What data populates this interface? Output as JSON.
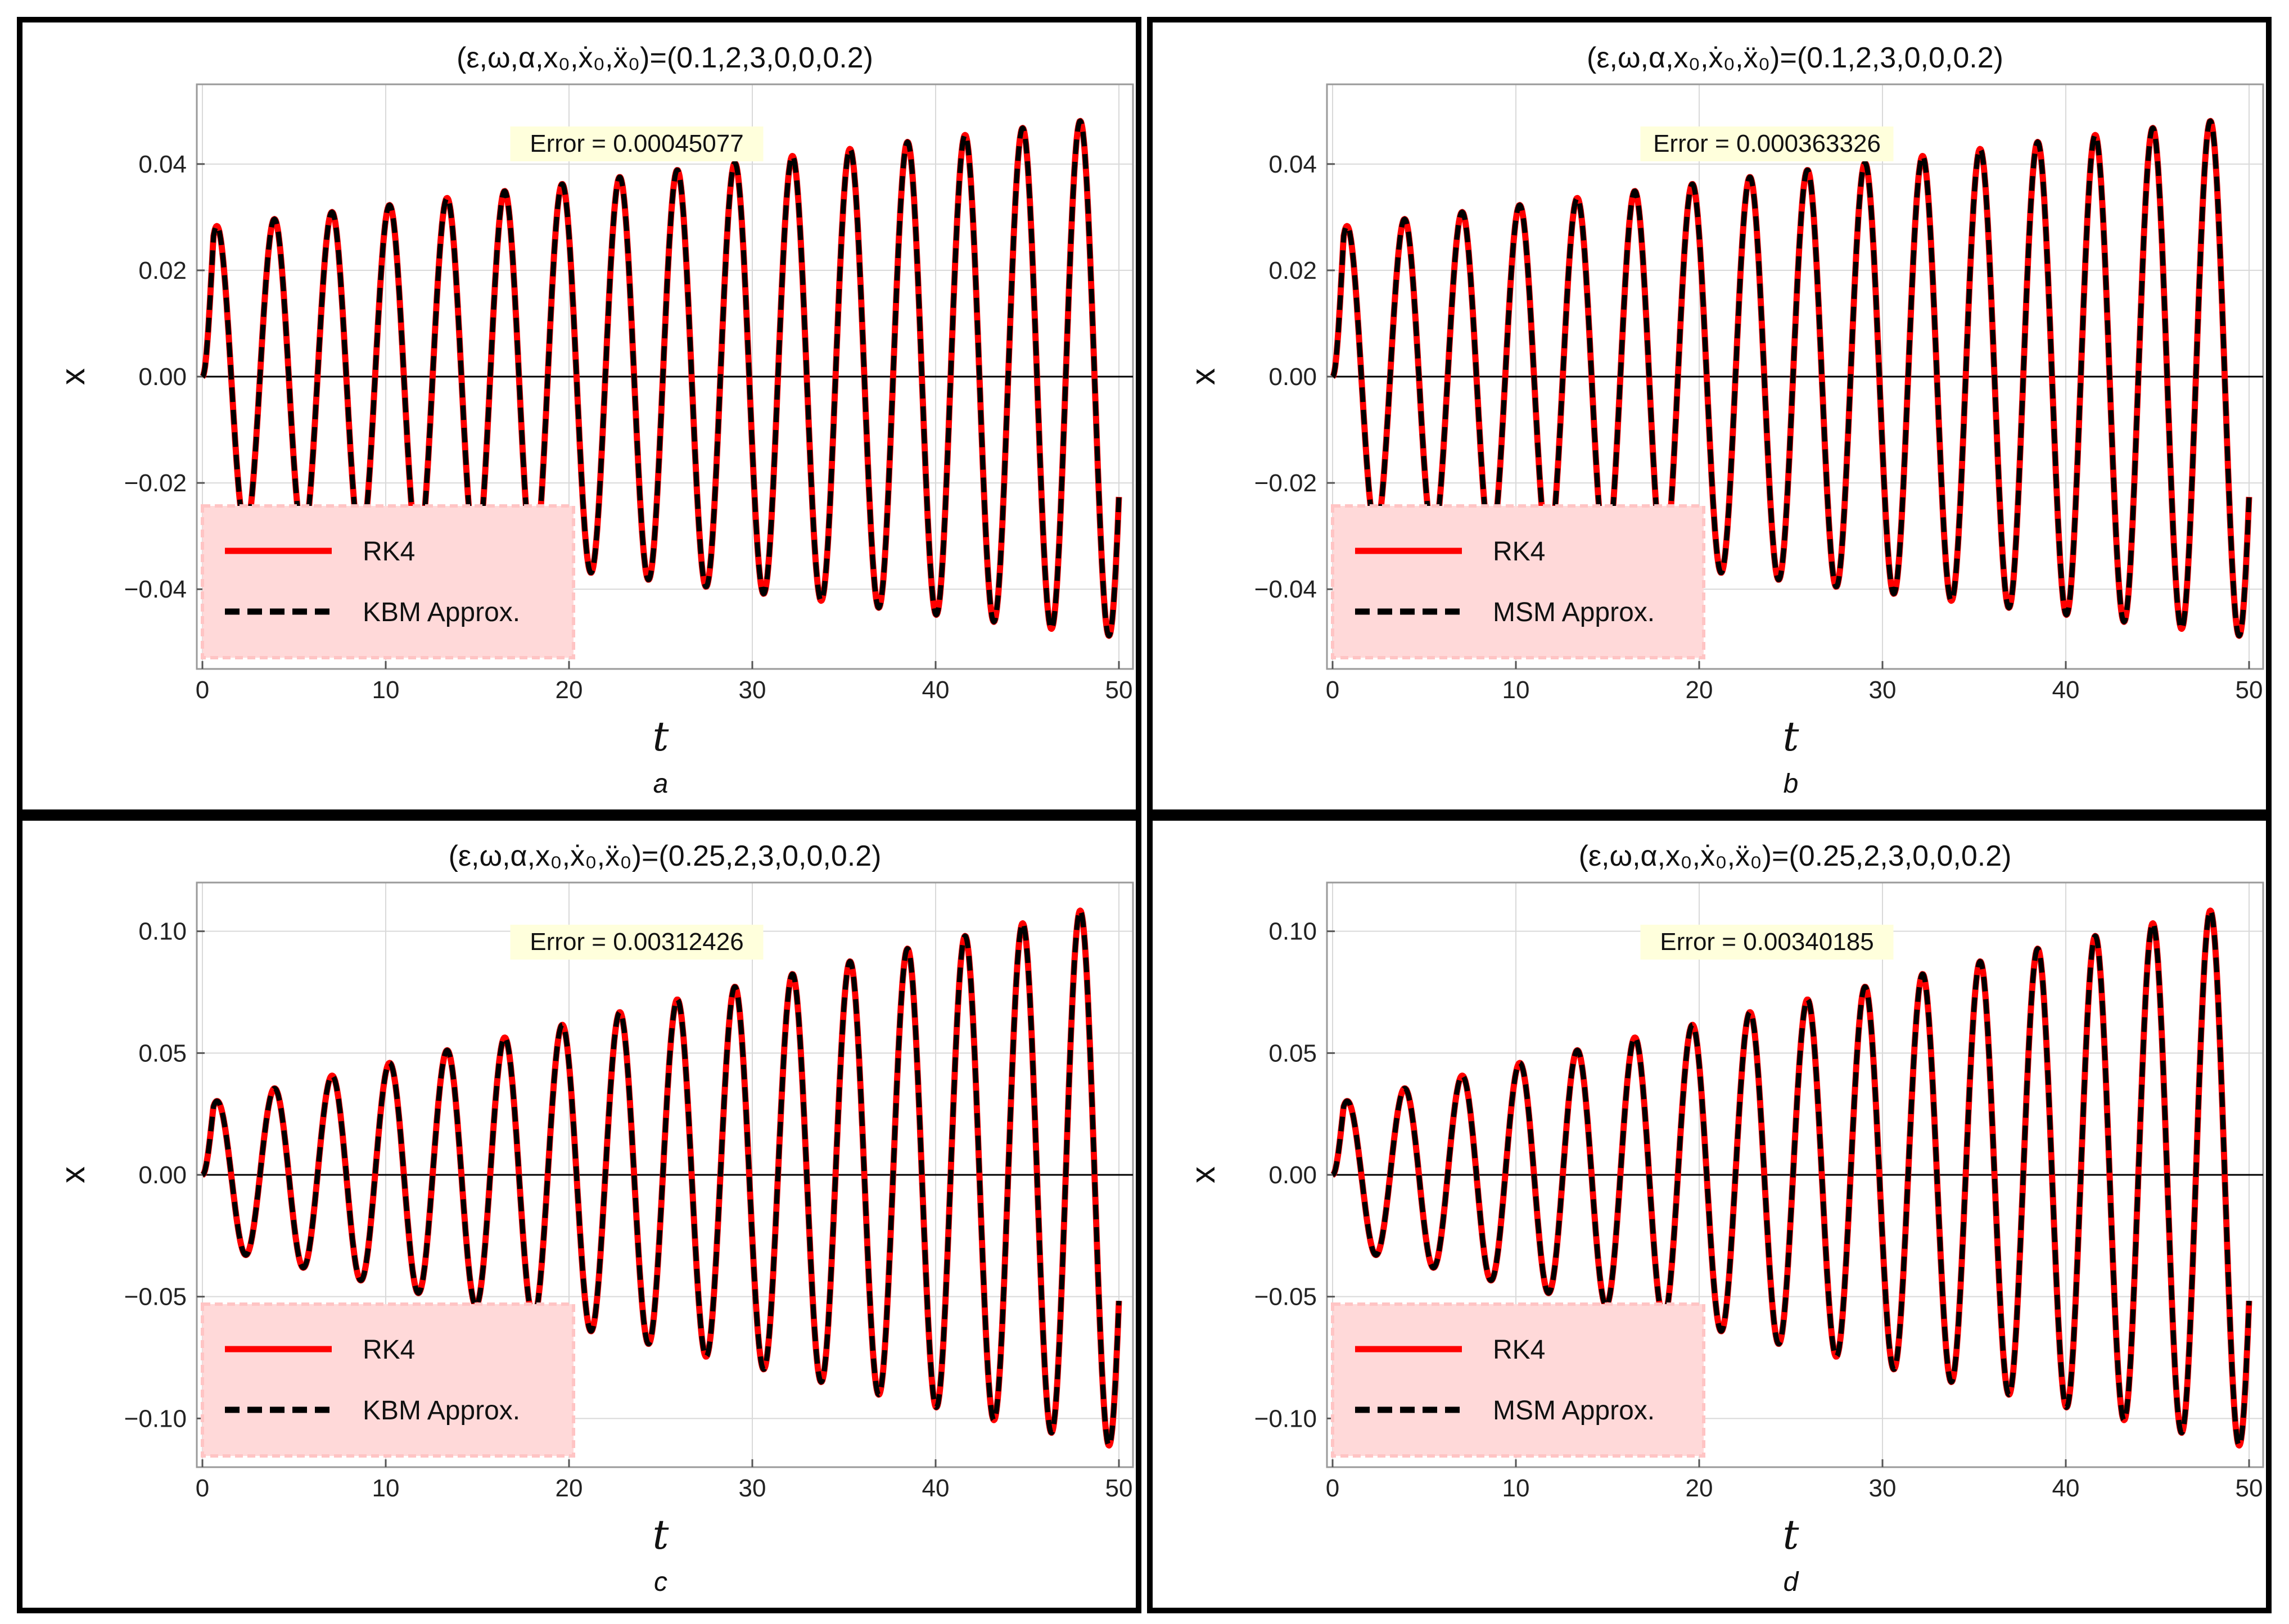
{
  "chart_data": [
    {
      "type": "line",
      "title": "(ε,ω,α,x₀,ẋ₀,ẍ₀)=(0.1,2,3,0,0,0.2)",
      "xlabel": "t",
      "ylabel": "x",
      "caption": "a",
      "annotation": "Error = 0.00045077",
      "xlim": [
        0,
        50
      ],
      "ylim": [
        -0.055,
        0.055
      ],
      "xticks": [
        0,
        10,
        20,
        30,
        40,
        50
      ],
      "xtick_labels": [
        "0",
        "10",
        "20",
        "30",
        "40",
        "50"
      ],
      "yticks": [
        -0.04,
        -0.02,
        0.0,
        0.02,
        0.04
      ],
      "ytick_labels": [
        "−0.04",
        "−0.02",
        "0.00",
        "0.02",
        "0.04"
      ],
      "legend_position": "bottom-left",
      "grid": true,
      "series": [
        {
          "name": "RK4",
          "style": "solid",
          "color": "#ff0000",
          "amplitude_start": 0.028,
          "amplitude_end": 0.049,
          "period": 3.14,
          "t_end": 50
        },
        {
          "name": "KBM Approx.",
          "style": "dashed",
          "color": "#000000",
          "amplitude_start": 0.028,
          "amplitude_end": 0.049,
          "period": 3.14,
          "t_end": 50
        }
      ]
    },
    {
      "type": "line",
      "title": "(ε,ω,α,x₀,ẋ₀,ẍ₀)=(0.1,2,3,0,0,0.2)",
      "xlabel": "t",
      "ylabel": "x",
      "caption": "b",
      "annotation": "Error = 0.000363326",
      "xlim": [
        0,
        50
      ],
      "ylim": [
        -0.055,
        0.055
      ],
      "xticks": [
        0,
        10,
        20,
        30,
        40,
        50
      ],
      "xtick_labels": [
        "0",
        "10",
        "20",
        "30",
        "40",
        "50"
      ],
      "yticks": [
        -0.04,
        -0.02,
        0.0,
        0.02,
        0.04
      ],
      "ytick_labels": [
        "−0.04",
        "−0.02",
        "0.00",
        "0.02",
        "0.04"
      ],
      "legend_position": "bottom-left",
      "grid": true,
      "series": [
        {
          "name": "RK4",
          "style": "solid",
          "color": "#ff0000",
          "amplitude_start": 0.028,
          "amplitude_end": 0.049,
          "period": 3.14,
          "t_end": 50
        },
        {
          "name": "MSM Approx.",
          "style": "dashed",
          "color": "#000000",
          "amplitude_start": 0.028,
          "amplitude_end": 0.049,
          "period": 3.14,
          "t_end": 50
        }
      ]
    },
    {
      "type": "line",
      "title": "(ε,ω,α,x₀,ẋ₀,ẍ₀)=(0.25,2,3,0,0,0.2)",
      "xlabel": "t",
      "ylabel": "x",
      "caption": "c",
      "annotation": "Error = 0.00312426",
      "xlim": [
        0,
        50
      ],
      "ylim": [
        -0.12,
        0.12
      ],
      "xticks": [
        0,
        10,
        20,
        30,
        40,
        50
      ],
      "xtick_labels": [
        "0",
        "10",
        "20",
        "30",
        "40",
        "50"
      ],
      "yticks": [
        -0.1,
        -0.05,
        0.0,
        0.05,
        0.1
      ],
      "ytick_labels": [
        "−0.10",
        "−0.05",
        "0.00",
        "0.05",
        "0.10"
      ],
      "legend_position": "bottom-left",
      "grid": true,
      "series": [
        {
          "name": "RK4",
          "style": "solid",
          "color": "#ff0000",
          "amplitude_start": 0.029,
          "amplitude_end": 0.112,
          "period": 3.14,
          "t_end": 50
        },
        {
          "name": "KBM Approx.",
          "style": "dashed",
          "color": "#000000",
          "amplitude_start": 0.029,
          "amplitude_end": 0.112,
          "period": 3.14,
          "t_end": 50
        }
      ]
    },
    {
      "type": "line",
      "title": "(ε,ω,α,x₀,ẋ₀,ẍ₀)=(0.25,2,3,0,0,0.2)",
      "xlabel": "t",
      "ylabel": "x",
      "caption": "d",
      "annotation": "Error = 0.00340185",
      "xlim": [
        0,
        50
      ],
      "ylim": [
        -0.12,
        0.12
      ],
      "xticks": [
        0,
        10,
        20,
        30,
        40,
        50
      ],
      "xtick_labels": [
        "0",
        "10",
        "20",
        "30",
        "40",
        "50"
      ],
      "yticks": [
        -0.1,
        -0.05,
        0.0,
        0.05,
        0.1
      ],
      "ytick_labels": [
        "−0.10",
        "−0.05",
        "0.00",
        "0.05",
        "0.10"
      ],
      "legend_position": "bottom-left",
      "grid": true,
      "series": [
        {
          "name": "RK4",
          "style": "solid",
          "color": "#ff0000",
          "amplitude_start": 0.029,
          "amplitude_end": 0.112,
          "period": 3.14,
          "t_end": 50
        },
        {
          "name": "MSM Approx.",
          "style": "dashed",
          "color": "#000000",
          "amplitude_start": 0.029,
          "amplitude_end": 0.112,
          "period": 3.14,
          "t_end": 50
        }
      ]
    }
  ],
  "colors": {
    "legend_bg": "#ffd9d9",
    "annotation_bg": "#ffffdc",
    "grid": "#d9d9d9",
    "frame": "#9a9a9a"
  }
}
